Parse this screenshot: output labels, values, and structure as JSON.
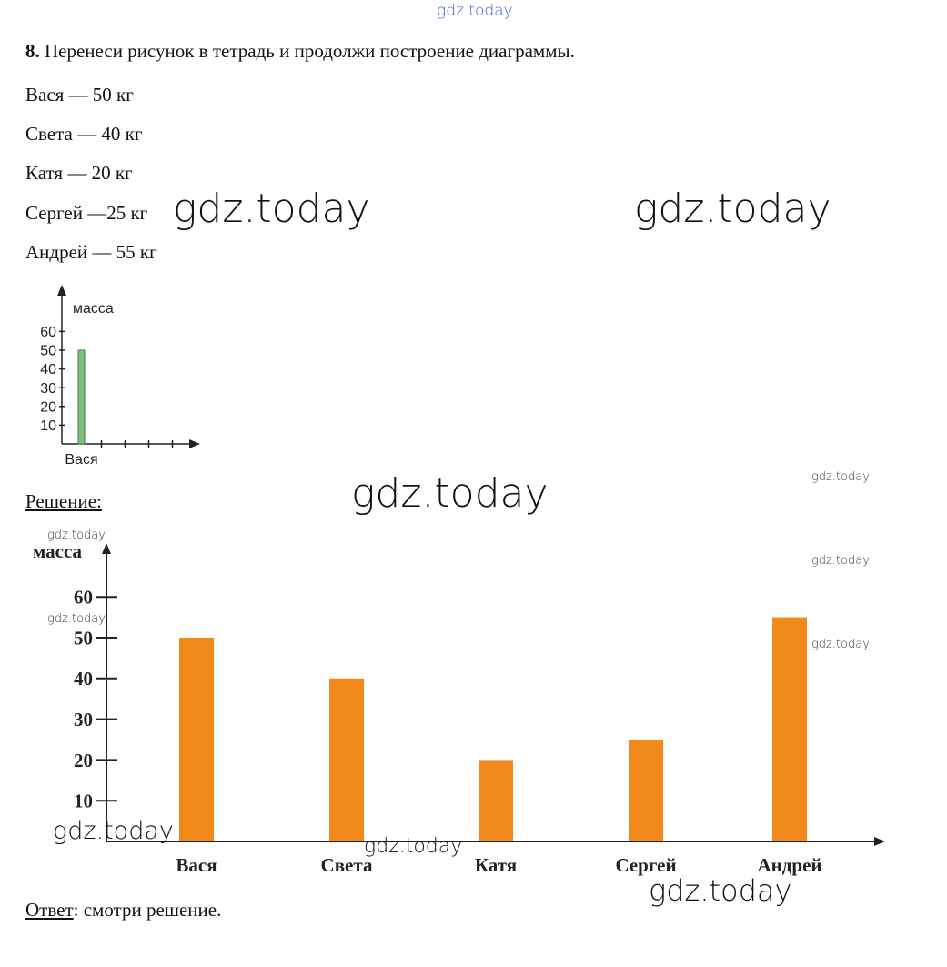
{
  "watermark": {
    "text": "gdz.today",
    "top_color": "#3a5fd9"
  },
  "task": {
    "number": "8.",
    "instruction": "Перенеси рисунок в тетрадь и продолжи построение диаграммы.",
    "items": [
      "Вася — 50 кг",
      "Света — 40 кг",
      "Катя — 20 кг",
      "Сергей —25 кг",
      "Андрей — 55 кг"
    ]
  },
  "solution_label": "Решение",
  "answer": {
    "label": "Ответ",
    "text": ": смотри решение."
  },
  "chart_data": [
    {
      "type": "bar",
      "ylabel": "масса",
      "categories": [
        "Вася"
      ],
      "values": [
        50
      ],
      "yticks": [
        10,
        20,
        30,
        40,
        50,
        60
      ],
      "ylim": [
        0,
        60
      ],
      "x_slots": 5,
      "bar_color": "#7fbf7f",
      "grid": false
    },
    {
      "type": "bar",
      "ylabel": "масса",
      "categories": [
        "Вася",
        "Света",
        "Катя",
        "Сергей",
        "Андрей"
      ],
      "values": [
        50,
        40,
        20,
        25,
        55
      ],
      "yticks": [
        10,
        20,
        30,
        40,
        50,
        60
      ],
      "ylim": [
        0,
        60
      ],
      "bar_color": "#f28a1b",
      "grid": false
    }
  ]
}
